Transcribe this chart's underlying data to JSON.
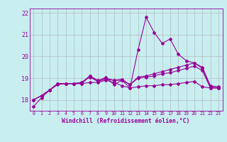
{
  "bg_color": "#c8eef0",
  "grid_color": "#b0b0b0",
  "line_color": "#990099",
  "xlim": [
    -0.5,
    23.5
  ],
  "ylim": [
    17.5,
    22.2
  ],
  "yticks": [
    18,
    19,
    20,
    21,
    22
  ],
  "xticks": [
    0,
    1,
    2,
    3,
    4,
    5,
    6,
    7,
    8,
    9,
    10,
    11,
    12,
    13,
    14,
    15,
    16,
    17,
    18,
    19,
    20,
    21,
    22,
    23
  ],
  "hours": [
    0,
    1,
    2,
    3,
    4,
    5,
    6,
    7,
    8,
    9,
    10,
    11,
    12,
    13,
    14,
    15,
    16,
    17,
    18,
    19,
    20,
    21,
    22,
    23
  ],
  "series1": [
    17.7,
    18.1,
    18.45,
    18.7,
    18.75,
    18.75,
    18.75,
    19.1,
    18.85,
    19.05,
    18.7,
    18.9,
    18.55,
    20.3,
    21.8,
    21.1,
    20.6,
    20.8,
    20.1,
    19.8,
    19.7,
    19.45,
    18.6,
    18.55
  ],
  "series2": [
    18.0,
    18.2,
    18.45,
    18.75,
    18.75,
    18.75,
    18.8,
    19.1,
    18.9,
    19.0,
    18.9,
    18.9,
    18.7,
    19.05,
    19.1,
    19.2,
    19.3,
    19.4,
    19.5,
    19.6,
    19.7,
    19.5,
    18.65,
    18.6
  ],
  "series3": [
    18.0,
    18.2,
    18.45,
    18.75,
    18.75,
    18.75,
    18.8,
    19.05,
    18.85,
    18.95,
    18.9,
    18.95,
    18.7,
    19.0,
    19.05,
    19.1,
    19.2,
    19.25,
    19.35,
    19.45,
    19.55,
    19.35,
    18.55,
    18.55
  ],
  "series4": [
    18.0,
    18.2,
    18.45,
    18.75,
    18.75,
    18.75,
    18.75,
    18.8,
    18.8,
    18.9,
    18.8,
    18.65,
    18.55,
    18.6,
    18.65,
    18.65,
    18.7,
    18.7,
    18.75,
    18.8,
    18.85,
    18.6,
    18.55,
    18.55
  ],
  "xlabel": "Windchill (Refroidissement éolien,°C)",
  "xtick_fontsize": 4.8,
  "ytick_fontsize": 6.0,
  "xlabel_fontsize": 5.8
}
